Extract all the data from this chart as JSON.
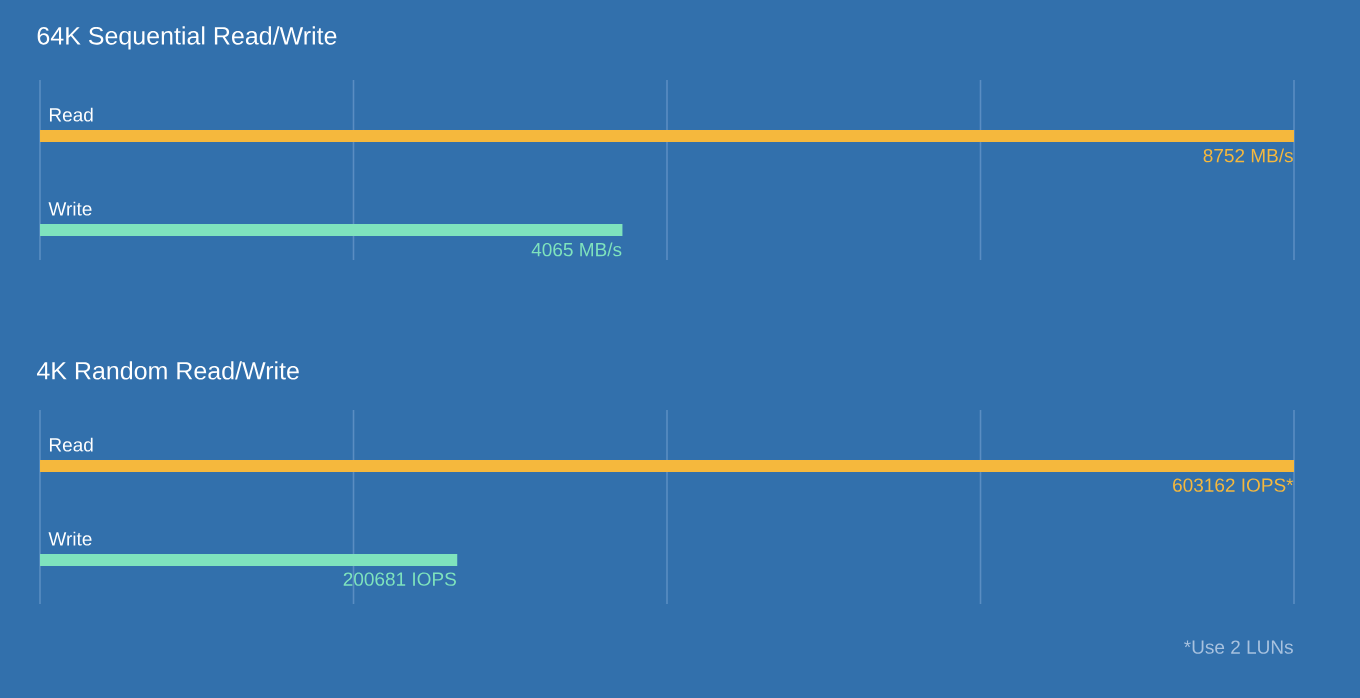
{
  "chart_data": [
    {
      "type": "bar",
      "orientation": "horizontal",
      "title": "64K Sequential Read/Write",
      "categories": [
        "Read",
        "Write"
      ],
      "values": [
        8752,
        4065
      ],
      "colors": [
        "#f5b83d",
        "#7fe3bd"
      ],
      "value_labels": [
        "8752 MB/s",
        "4065 MB/s"
      ],
      "xlim": [
        0,
        8752
      ],
      "xticks": [
        {
          "value": 0,
          "label": null
        },
        {
          "value": 2188,
          "label": null
        },
        {
          "value": 4376,
          "label": null
        },
        {
          "value": 6564,
          "label": null
        },
        {
          "value": 8752,
          "label": null
        }
      ],
      "grid": "x"
    },
    {
      "type": "bar",
      "orientation": "horizontal",
      "title": "4K Random Read/Write",
      "categories": [
        "Read",
        "Write"
      ],
      "values": [
        603162,
        200681
      ],
      "colors": [
        "#f5b83d",
        "#7fe3bd"
      ],
      "value_labels": [
        "603162 IOPS*",
        "200681 IOPS"
      ],
      "xlim": [
        0,
        603162
      ],
      "xticks": [
        {
          "value": 0,
          "label": null
        },
        {
          "value": 150790.5,
          "label": null
        },
        {
          "value": 301581,
          "label": null
        },
        {
          "value": 452371.5,
          "label": null
        },
        {
          "value": 603162,
          "label": null
        }
      ],
      "grid": "x",
      "annotations": [
        "*Use 2 LUNs"
      ]
    }
  ]
}
